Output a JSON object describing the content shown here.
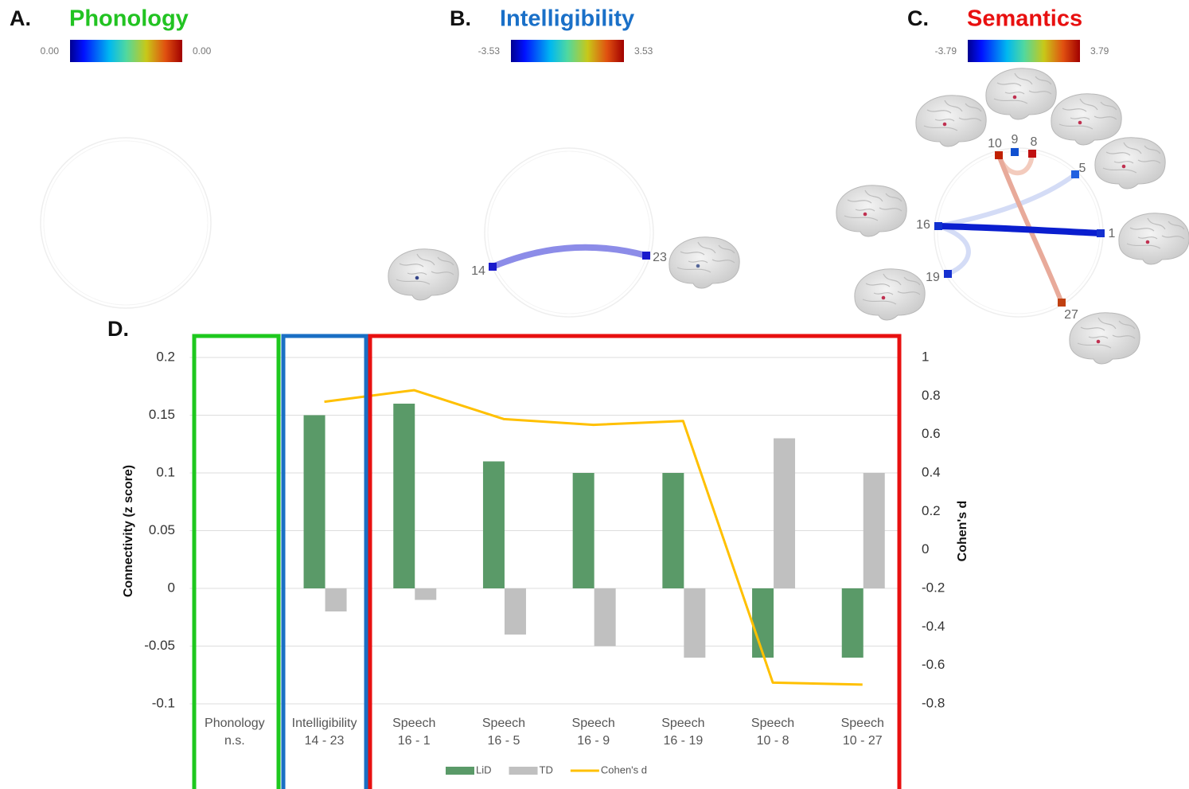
{
  "panels": [
    {
      "label": "A.",
      "title": "Phonology",
      "color": "#22c322",
      "colorbar": [
        {
          "value": 0,
          "label": "0.00"
        },
        {
          "value": 0,
          "label": "0.00"
        }
      ],
      "nodes": []
    },
    {
      "label": "B.",
      "title": "Intelligibility",
      "color": "#1a70c8",
      "colorbar": [
        -3.53,
        3.53
      ],
      "nodes": [
        "14",
        "23"
      ]
    },
    {
      "label": "C.",
      "title": "Semantics",
      "color": "#e81010",
      "colorbar": [
        -3.79,
        3.79
      ],
      "nodes": [
        "10",
        "9",
        "8",
        "5",
        "16",
        "1",
        "19",
        "27"
      ]
    }
  ],
  "chart_data": {
    "type": "bar",
    "label": "D.",
    "categories": [
      [
        "Phonology",
        "n.s."
      ],
      [
        "Intelligibility",
        "14 - 23"
      ],
      [
        "Speech",
        "16 - 1"
      ],
      [
        "Speech",
        "16 - 5"
      ],
      [
        "Speech",
        "16 - 9"
      ],
      [
        "Speech",
        "16 - 19"
      ],
      [
        "Speech",
        "10 - 8"
      ],
      [
        "Speech",
        "10 - 27"
      ]
    ],
    "series": [
      {
        "name": "LiD",
        "color": "#5a9a68",
        "values": [
          null,
          0.15,
          0.16,
          0.11,
          0.1,
          0.1,
          -0.06,
          -0.06
        ]
      },
      {
        "name": "TD",
        "color": "#c0c0c0",
        "values": [
          null,
          -0.02,
          -0.01,
          -0.04,
          -0.05,
          -0.06,
          0.13,
          0.1
        ]
      },
      {
        "name": "Cohen's d",
        "color": "#ffc000",
        "type": "line",
        "axis": "y2",
        "values": [
          null,
          0.77,
          0.83,
          0.68,
          0.65,
          0.67,
          -0.69,
          -0.7
        ]
      }
    ],
    "ylabel": "Connectivity (z score)",
    "y2label": "Cohen's d",
    "ylim": [
      -0.1,
      0.2
    ],
    "yticks": [
      -0.1,
      -0.05,
      0,
      0.05,
      0.1,
      0.15,
      0.2
    ],
    "y2lim": [
      -0.8,
      1
    ],
    "y2ticks": [
      -0.8,
      -0.6,
      -0.4,
      -0.2,
      0,
      0.2,
      0.4,
      0.6,
      0.8,
      1
    ],
    "grid": true
  }
}
